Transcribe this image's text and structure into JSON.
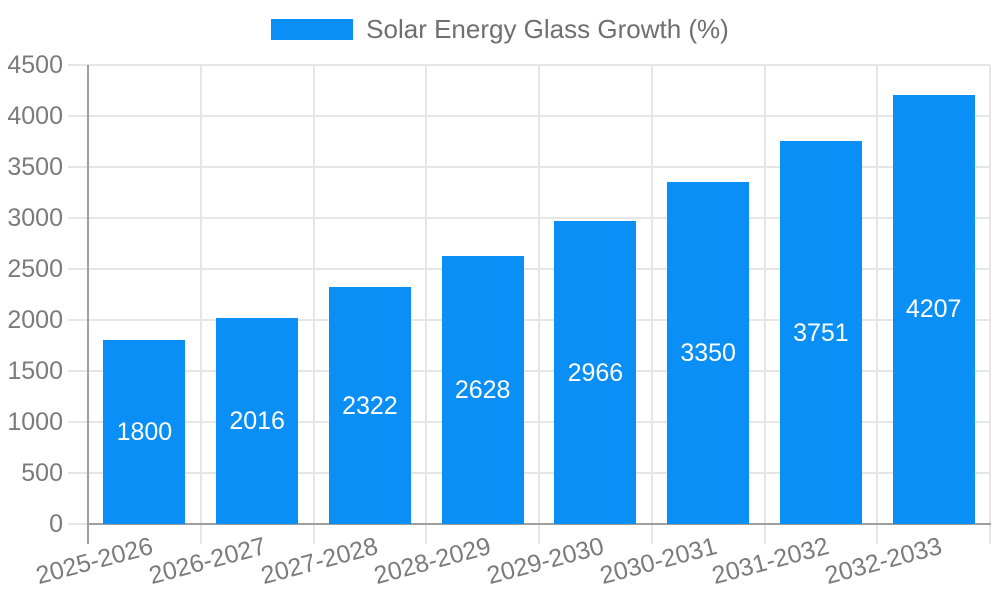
{
  "legend": {
    "label": "Solar Energy Glass Growth (%)"
  },
  "colors": {
    "bar": "#0A8FF7",
    "grid": "#e6e6e6",
    "axis": "#9e9e9e",
    "axis_label_text": "#7b7b7b",
    "legend_text": "#6f6f6f",
    "value_text": "#ffffff",
    "background": "#ffffff"
  },
  "chart_data": {
    "type": "bar",
    "title": "Solar Energy Glass Growth (%)",
    "categories": [
      "2025-2026",
      "2026-2027",
      "2027-2028",
      "2028-2029",
      "2029-2030",
      "2030-2031",
      "2031-2032",
      "2032-2033"
    ],
    "values": [
      1800,
      2016,
      2322,
      2628,
      2966,
      3350,
      3751,
      4207
    ],
    "xlabel": "",
    "ylabel": "",
    "ylim": [
      0,
      4500
    ],
    "ytick_step": 500,
    "ytick_labels": [
      "0",
      "500",
      "1000",
      "1500",
      "2000",
      "2500",
      "3000",
      "3500",
      "4000",
      "4500"
    ],
    "grid": true,
    "legend_position": "top",
    "bar_label_position": "center",
    "xlabel_rotation_deg": -15
  }
}
